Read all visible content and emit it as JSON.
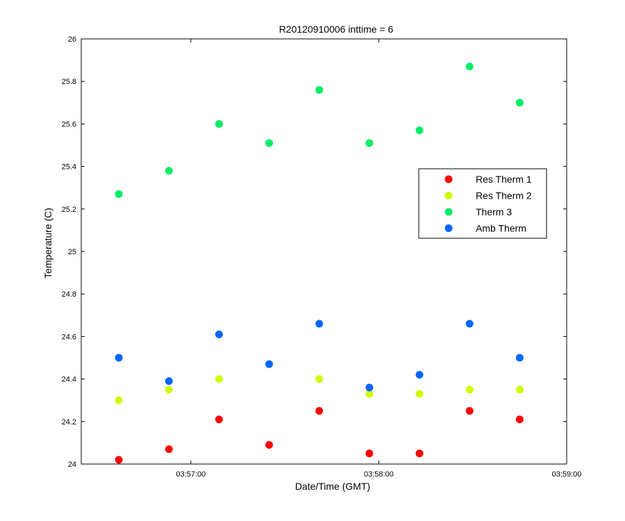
{
  "chart_data": {
    "type": "scatter",
    "title": "R20120910006 inttime = 6",
    "xlabel": "Date/Time (GMT)",
    "ylabel": "Temperature (C)",
    "x_unit": "time of day (GMT)",
    "xlim": [
      "03:56:25",
      "03:59:00"
    ],
    "ylim": [
      24,
      26
    ],
    "x_ticks": [
      "03:57:00",
      "03:58:00",
      "03:59:00"
    ],
    "y_ticks": [
      "24",
      "24.2",
      "24.4",
      "24.6",
      "24.8",
      "25",
      "25.2",
      "25.4",
      "25.6",
      "25.8",
      "26"
    ],
    "grid": false,
    "legend_position": "center-right",
    "x": [
      "03:56:37",
      "03:56:53",
      "03:57:09",
      "03:57:25",
      "03:57:41",
      "03:57:57",
      "03:58:13",
      "03:58:29",
      "03:58:45"
    ],
    "series": [
      {
        "name": "Res Therm 1",
        "color": "#ff0000",
        "values": [
          24.02,
          24.07,
          24.21,
          24.09,
          24.25,
          24.05,
          24.05,
          24.25,
          24.21
        ]
      },
      {
        "name": "Res Therm 2",
        "color": "#ccff00",
        "values": [
          24.3,
          24.35,
          24.4,
          24.47,
          24.4,
          24.33,
          24.33,
          24.35,
          24.35
        ]
      },
      {
        "name": "Therm 3",
        "color": "#00ee66",
        "values": [
          25.27,
          25.38,
          25.6,
          25.51,
          25.76,
          25.51,
          25.57,
          25.87,
          25.7
        ]
      },
      {
        "name": "Amb Therm",
        "color": "#0066ff",
        "values": [
          24.5,
          24.39,
          24.61,
          24.47,
          24.66,
          24.36,
          24.42,
          24.66,
          24.5
        ]
      }
    ]
  }
}
